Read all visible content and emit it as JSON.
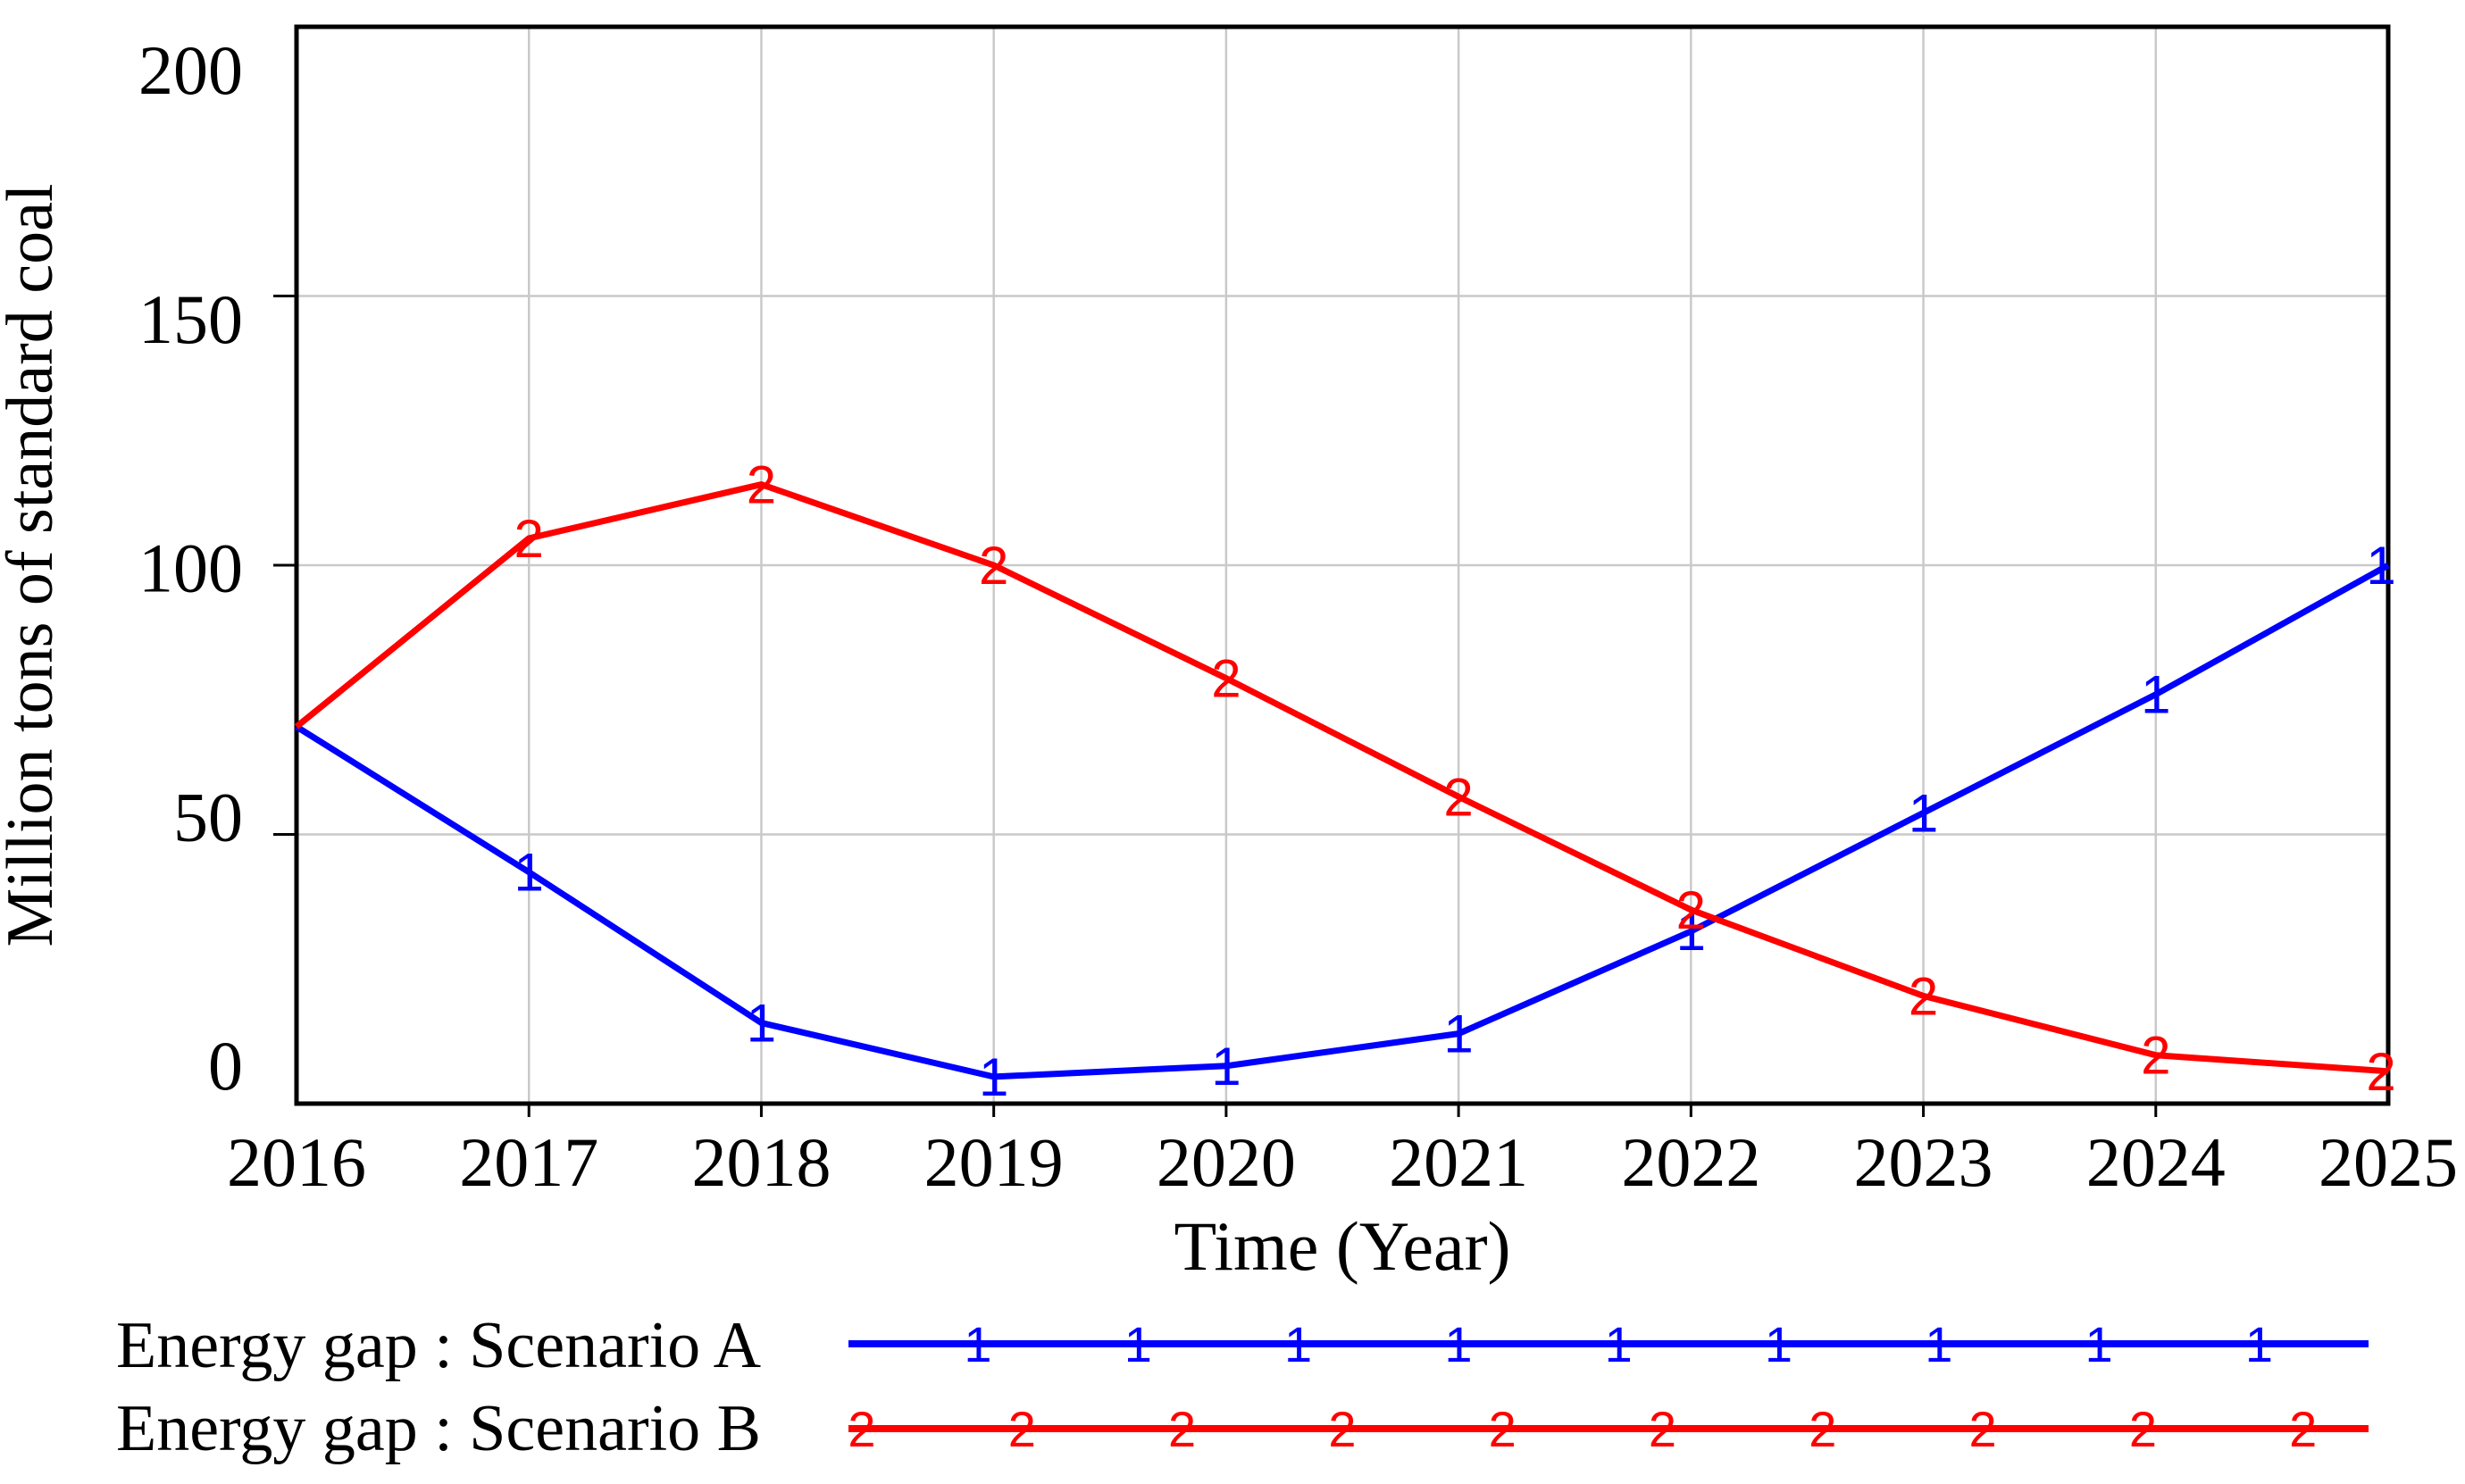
{
  "chart_data": {
    "type": "line",
    "title": "",
    "xlabel": "Time (Year)",
    "ylabel": "Million tons of standard coal",
    "x": [
      2016,
      2017,
      2018,
      2019,
      2020,
      2021,
      2022,
      2023,
      2024,
      2025
    ],
    "x_tick_labels": [
      "2016",
      "2017",
      "2018",
      "2019",
      "2020",
      "2021",
      "2022",
      "2023",
      "2024",
      "2025"
    ],
    "y_ticks": [
      0,
      50,
      100,
      150,
      200
    ],
    "y_tick_labels": [
      "0",
      "50",
      "100",
      "150",
      "200"
    ],
    "ylim": [
      0,
      200
    ],
    "xlim": [
      2016,
      2025
    ],
    "grid": true,
    "series": [
      {
        "name": "Energy gap : Scenario A",
        "marker": "1",
        "color": "#0000ff",
        "values": [
          70,
          43,
          15,
          5,
          7,
          13,
          32,
          54,
          76,
          100
        ]
      },
      {
        "name": "Energy gap : Scenario B",
        "marker": "2",
        "color": "#ff0000",
        "values": [
          70,
          105,
          115,
          100,
          79,
          57,
          36,
          20,
          9,
          6
        ]
      }
    ],
    "legend": {
      "position": "bottom-left",
      "rows": [
        {
          "label": "Energy gap : Scenario A",
          "marker": "1",
          "color": "#0000ff",
          "marker_count": 9
        },
        {
          "label": "Energy gap : Scenario B",
          "marker": "2",
          "color": "#ff0000",
          "marker_count": 10
        }
      ]
    },
    "colors": {
      "axis": "#000000",
      "grid": "#c9c9c9",
      "background": "#ffffff",
      "series_a": "#0000ff",
      "series_b": "#ff0000"
    }
  }
}
